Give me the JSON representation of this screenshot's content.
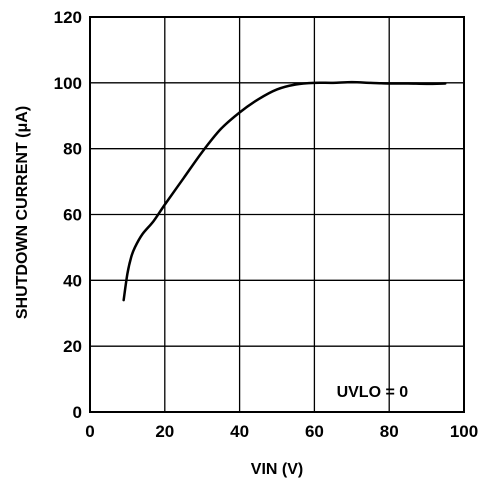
{
  "chart_data": {
    "type": "line",
    "xlabel": "VIN (V)",
    "ylabel": "SHUTDOWN CURRENT (μA)",
    "xlim": [
      0,
      100
    ],
    "ylim": [
      0,
      120
    ],
    "x_ticks": [
      0,
      20,
      40,
      60,
      80,
      100
    ],
    "y_ticks": [
      0,
      20,
      40,
      60,
      80,
      100,
      120
    ],
    "x_tick_labels": [
      "0",
      "20",
      "40",
      "60",
      "80",
      "100"
    ],
    "y_tick_labels": [
      "0",
      "20",
      "40",
      "60",
      "80",
      "100",
      "120"
    ],
    "grid": true,
    "annotation": "UVLO = 0",
    "series": [
      {
        "x": [
          9,
          10,
          11,
          12,
          14,
          17,
          20,
          25,
          30,
          35,
          40,
          45,
          50,
          55,
          60,
          65,
          70,
          75,
          80,
          85,
          90,
          95
        ],
        "y": [
          34,
          42,
          47,
          50,
          54,
          58,
          63,
          71,
          79,
          86,
          91,
          95,
          98,
          99.5,
          100,
          100,
          100.2,
          100,
          99.8,
          99.8,
          99.7,
          99.8
        ],
        "color": "#000000"
      }
    ]
  }
}
